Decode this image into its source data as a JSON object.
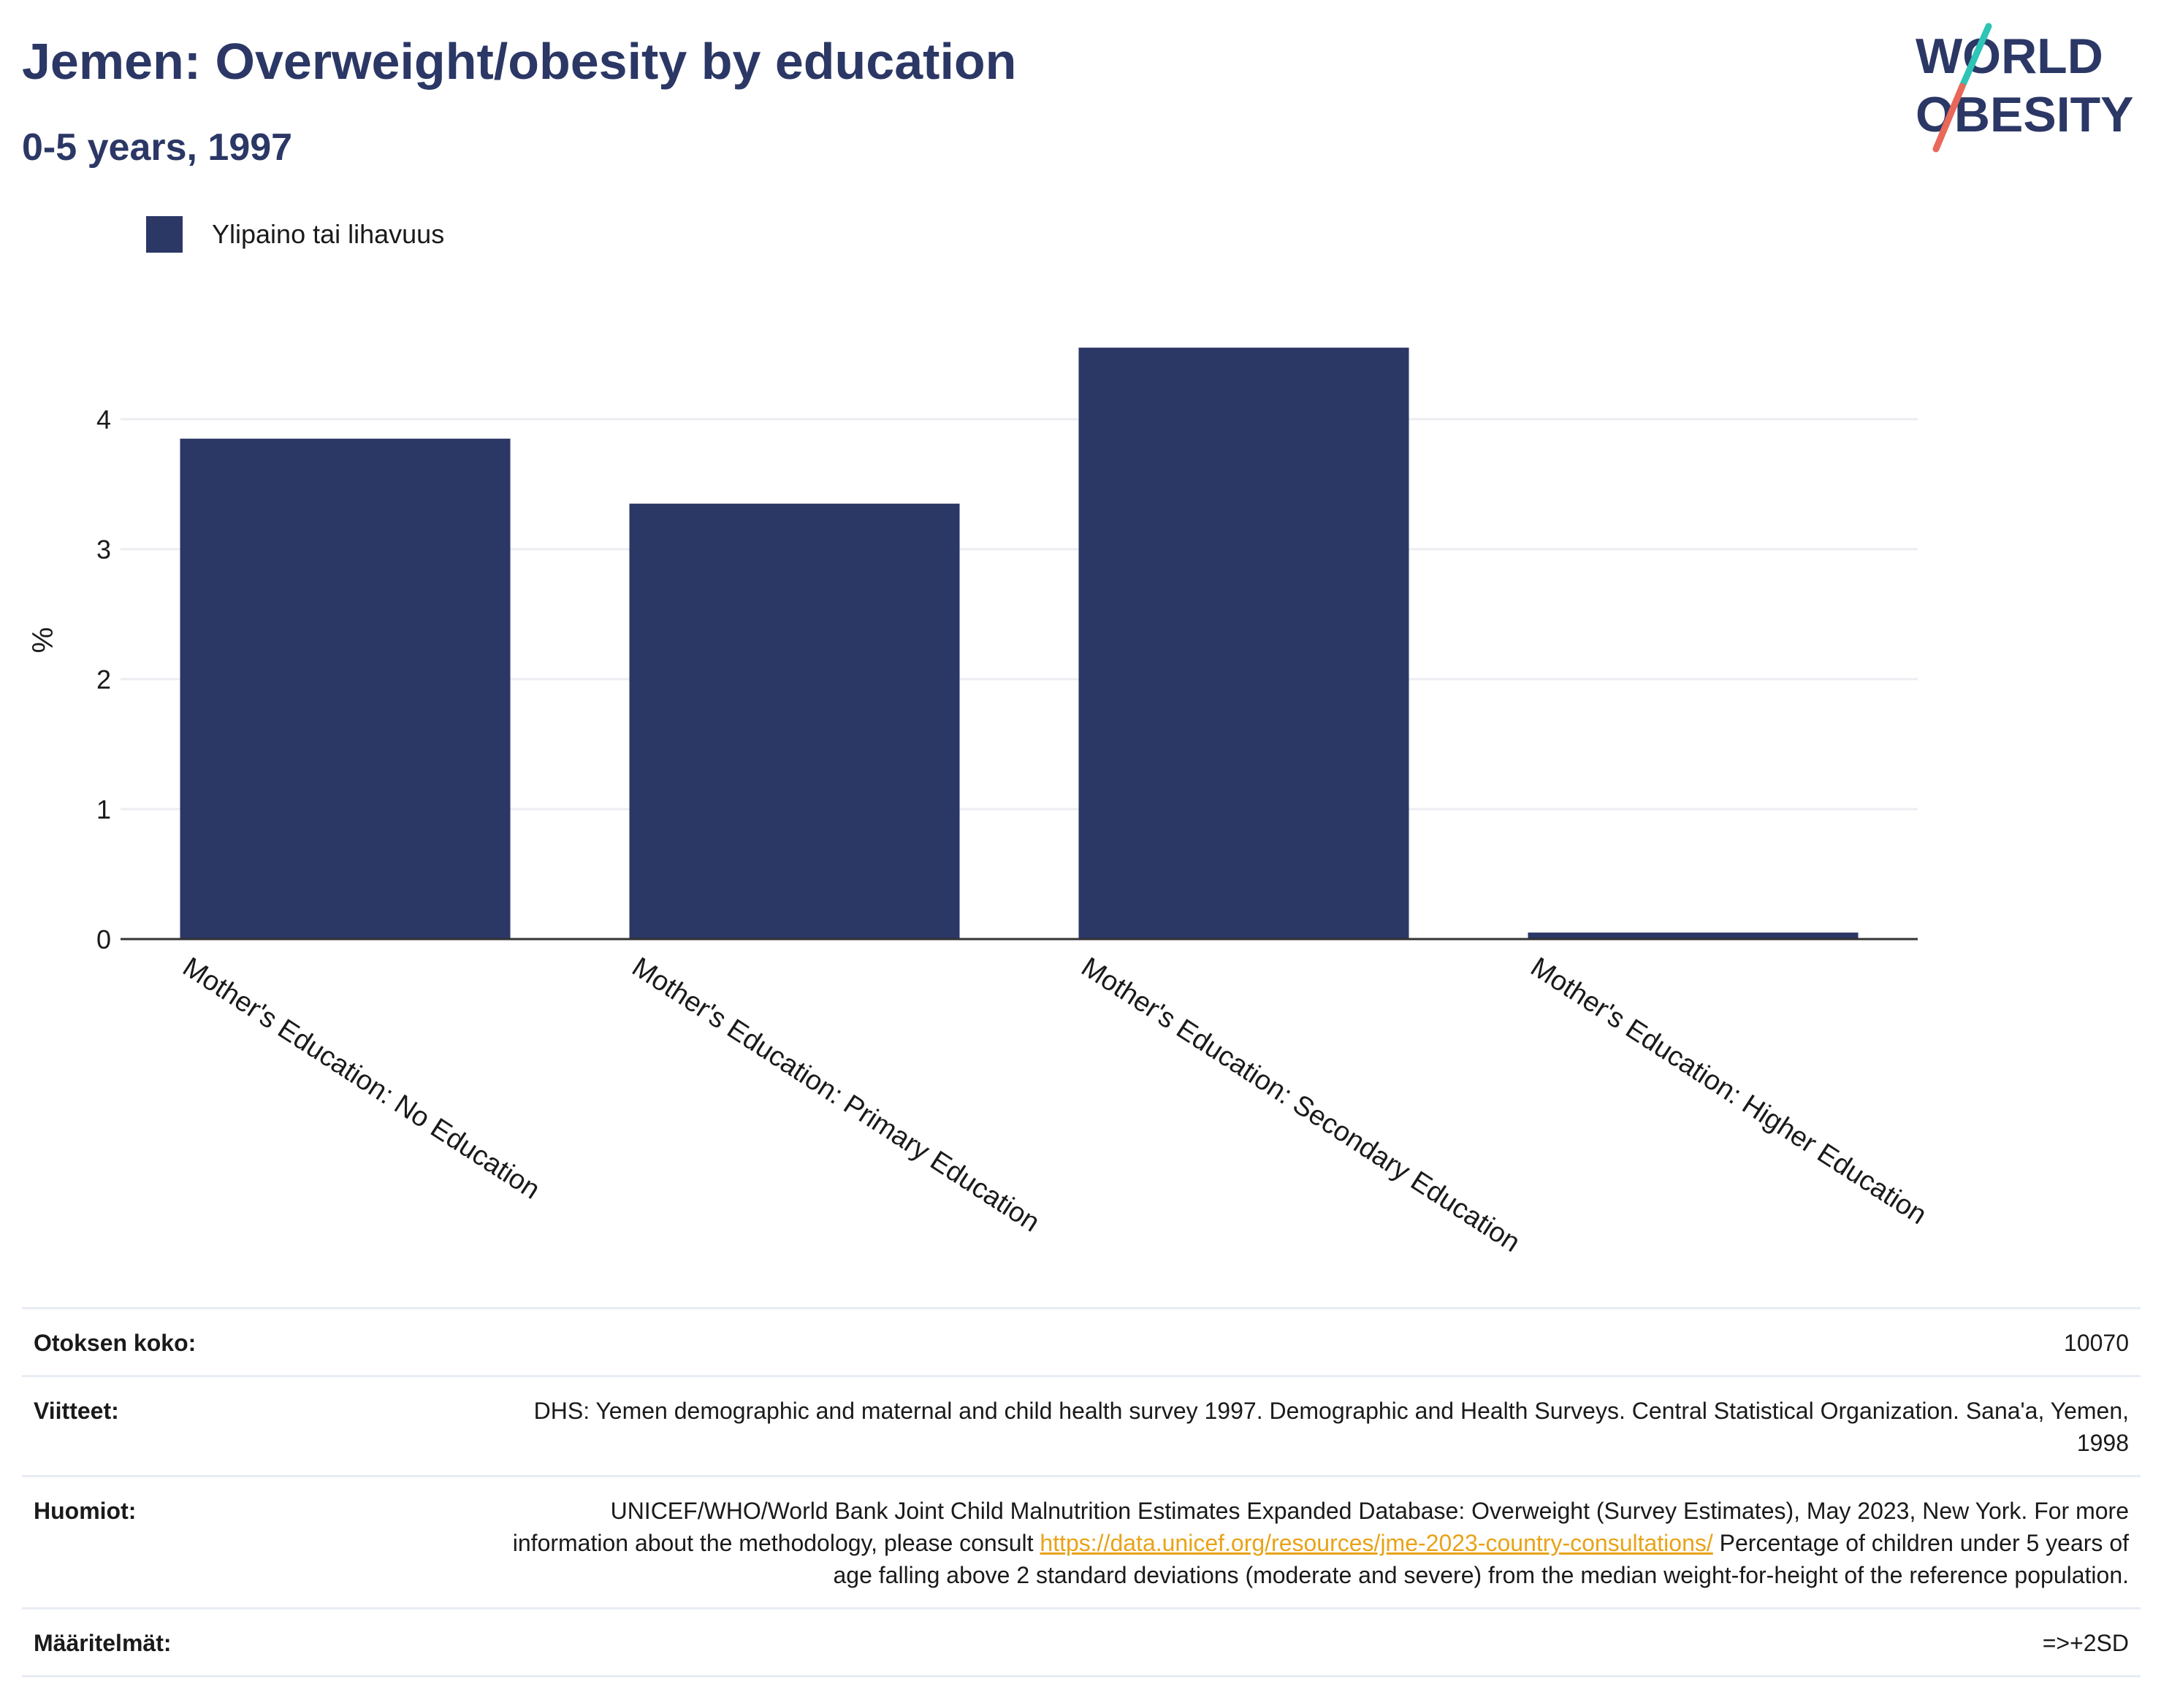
{
  "header": {
    "title": "Jemen: Overweight/obesity by education",
    "subtitle": "0-5 years, 1997"
  },
  "logo": {
    "line1": "WORLD",
    "line2": "OBESITY"
  },
  "legend": {
    "label": "Ylipaino tai lihavuus",
    "color": "#2b3765"
  },
  "chart_data": {
    "type": "bar",
    "categories": [
      "Mother's Education: No Education",
      "Mother's Education: Primary Education",
      "Mother's Education: Secondary Education",
      "Mother's Education: Higher Education"
    ],
    "series": [
      {
        "name": "Ylipaino tai lihavuus",
        "values": [
          3.85,
          3.35,
          4.55,
          0.05
        ]
      }
    ],
    "ylabel": "%",
    "yticks": [
      0,
      1,
      2,
      3,
      4
    ],
    "ylim": [
      0,
      4.75
    ],
    "grid": true,
    "legend_position": "top-left",
    "colors": {
      "bar": "#2b3765",
      "grid": "#ececf2",
      "axis": "#333333"
    }
  },
  "info": {
    "sample_label": "Otoksen koko:",
    "sample_value": "10070",
    "refs_label": "Viitteet:",
    "refs_value": "DHS: Yemen demographic and maternal and child health survey 1997. Demographic and Health Surveys. Central Statistical Organization. Sana'a, Yemen, 1998",
    "notes_label": "Huomiot:",
    "notes_text1": "UNICEF/WHO/World Bank Joint Child Malnutrition Estimates Expanded Database: Overweight (Survey Estimates), May 2023, New York. For more information about the methodology, please consult ",
    "notes_link": "https://data.unicef.org/resources/jme-2023-country-consultations/",
    "notes_text2": " Percentage of children under 5 years of age falling above 2 standard deviations (moderate and severe) from the median weight-for-height of the reference population.",
    "defs_label": "Määritelmät:",
    "defs_value": "=>+2SD"
  }
}
